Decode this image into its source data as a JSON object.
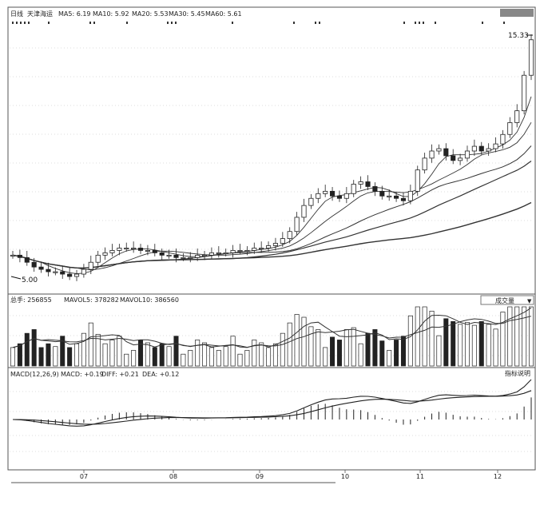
{
  "header": {
    "period": "日线",
    "stock_name": "天津海运",
    "ma_labels": [
      "MA5: 6.19",
      "MA10: 5.92",
      "MA20: 5.53",
      "MA30: 5.45",
      "MA60: 5.61"
    ]
  },
  "price_panel": {
    "high_label": "15.33",
    "low_label": "5.00"
  },
  "volume_panel": {
    "labels": [
      "总手: 256855",
      "MAVOL5: 378282",
      "MAVOL10: 386560"
    ],
    "selector_label": "成交量",
    "selector_arrow": "▼"
  },
  "macd_panel": {
    "labels": [
      "MACD(12,26,9)",
      "MACD: +0.19",
      "DIFF: +0.21",
      "DEA: +0.12"
    ],
    "help_label": "指标说明"
  },
  "x_axis": {
    "months": [
      "07",
      "08",
      "09",
      "10",
      "11",
      "12"
    ]
  },
  "chart_data": {
    "type": "candlestick",
    "x_axis_months": [
      "07",
      "08",
      "09",
      "10",
      "11",
      "12"
    ],
    "price_markers": {
      "high": 15.33,
      "low": 5.0
    },
    "price_series": [
      {
        "name": "close_approx",
        "values": [
          5.9,
          5.8,
          5.6,
          5.4,
          5.3,
          5.2,
          5.2,
          5.1,
          5.0,
          5.1,
          5.3,
          5.6,
          5.9,
          6.0,
          6.1,
          6.2,
          6.2,
          6.2,
          6.1,
          6.1,
          6.0,
          5.9,
          5.9,
          5.8,
          5.8,
          5.8,
          5.9,
          5.9,
          6.0,
          6.0,
          6.0,
          6.1,
          6.1,
          6.1,
          6.2,
          6.2,
          6.3,
          6.4,
          6.6,
          6.9,
          7.5,
          8.0,
          8.3,
          8.5,
          8.6,
          8.4,
          8.3,
          8.5,
          8.9,
          9.0,
          8.8,
          8.6,
          8.4,
          8.4,
          8.3,
          8.2,
          8.6,
          9.5,
          10.0,
          10.3,
          10.4,
          10.1,
          9.9,
          10.0,
          10.3,
          10.5,
          10.3,
          10.4,
          10.6,
          11.0,
          11.5,
          12.0,
          13.5,
          15.0
        ]
      }
    ],
    "volume": {
      "total": 256855,
      "MAVOL5": 378282,
      "MAVOL10": 386560
    },
    "macd": {
      "params": "12,26,9",
      "MACD": 0.19,
      "DIFF": 0.21,
      "DEA": 0.12
    }
  }
}
